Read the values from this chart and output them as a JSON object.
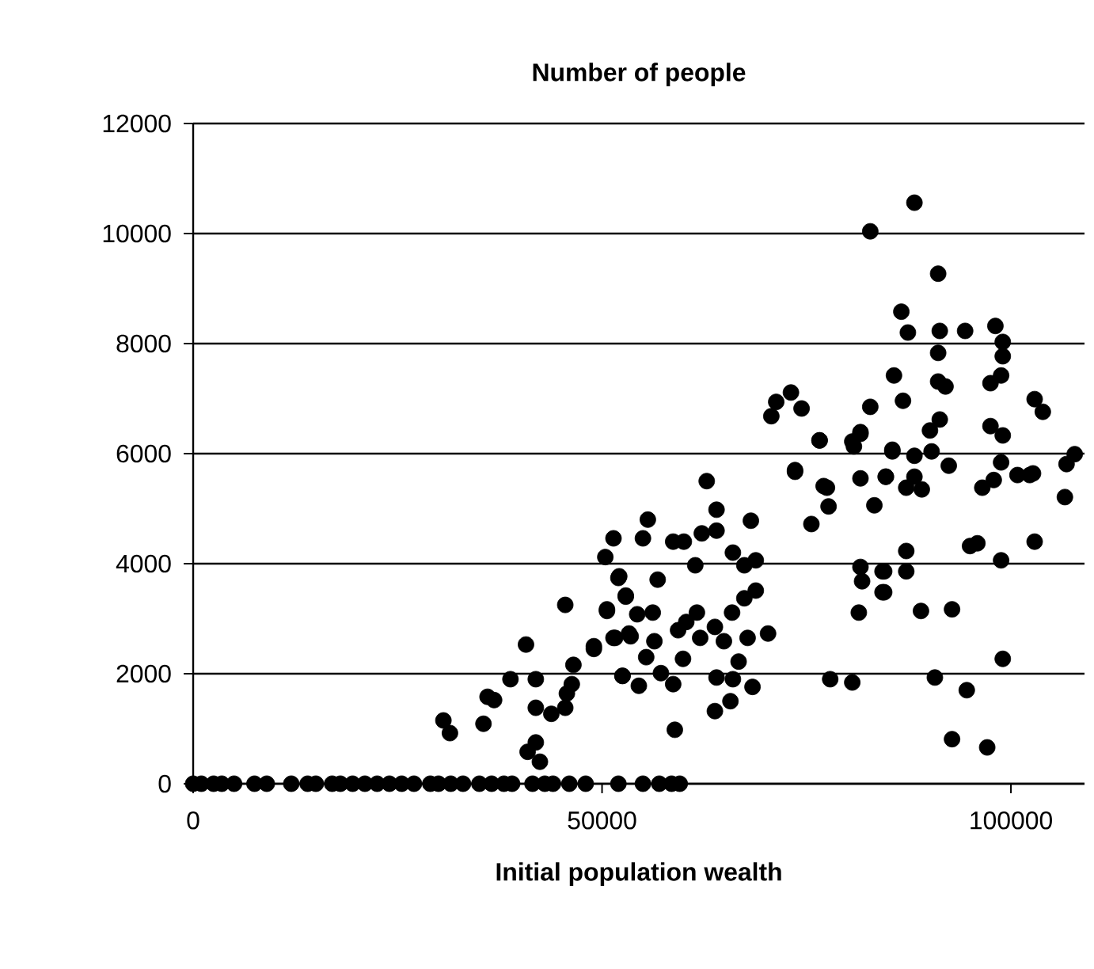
{
  "chart_data": {
    "type": "scatter",
    "title": "Number of people",
    "xlabel": "Initial population wealth",
    "xlim": [
      0,
      109000
    ],
    "xticks": [
      0,
      50000,
      100000
    ],
    "ylim": [
      0,
      12000
    ],
    "yticks": [
      0,
      2000,
      4000,
      6000,
      8000,
      10000,
      12000
    ],
    "grid": "y",
    "marker": "circle",
    "series": [
      {
        "color": "#000000",
        "x": [
          0,
          1000,
          2500,
          3500,
          5000,
          7500,
          9000,
          12000,
          14000,
          15000,
          17000,
          18000,
          19500,
          21000,
          22500,
          24000,
          25500,
          27000,
          29000,
          30000,
          31500,
          33000,
          35000,
          36500,
          38000,
          39000,
          41500,
          43000,
          44000,
          46000,
          48000,
          52000,
          55000,
          57000,
          58500,
          59500,
          30600,
          31400,
          35500,
          36000,
          36800,
          40700,
          38800,
          41900,
          41900,
          40900,
          41900,
          42400,
          43800,
          45500,
          45700,
          46300,
          46500,
          45500,
          49000,
          50600,
          52000,
          52900,
          52500,
          54500,
          51400,
          53300,
          62800,
          64000,
          55600,
          51400,
          50400,
          55000,
          58700,
          60000,
          62200,
          64000,
          68200,
          66000,
          68800,
          67400,
          61400,
          56800,
          52100,
          52900,
          50600,
          54300,
          56200,
          68800,
          67400,
          65900,
          61600,
          60300,
          63800,
          70300,
          49000,
          51600,
          53500,
          56400,
          59300,
          62000,
          64900,
          67800,
          55400,
          59900,
          66700,
          52500,
          57200,
          58700,
          64000,
          66000,
          68400,
          65700,
          63800,
          58900,
          77900,
          80600,
          73600,
          76600,
          77500,
          75600,
          77700,
          80600,
          81600,
          81600,
          84700,
          83300,
          81600,
          81800,
          84500,
          84500,
          81400,
          85500,
          88200,
          82800,
          91100,
          86600,
          87400,
          91300,
          94400,
          98100,
          99000,
          99000,
          91100,
          85700,
          91100,
          92000,
          98800,
          97500,
          86800,
          82800,
          71300,
          73100,
          74400,
          70700,
          102900,
          103900,
          76600,
          81600,
          80800,
          91300,
          90100,
          97500,
          99000,
          85500,
          88200,
          90300,
          92400,
          98800,
          73600,
          77100,
          84700,
          102300,
          106800,
          107800,
          106600,
          96500,
          97900,
          100800,
          102700,
          87200,
          89100,
          88200,
          95900,
          95000,
          102900,
          98800,
          87200,
          87200,
          84300,
          84300,
          89000,
          92800,
          99000,
          90700,
          94600,
          92800,
          97100
        ],
        "values": [
          0,
          0,
          0,
          0,
          0,
          0,
          0,
          0,
          0,
          0,
          0,
          0,
          0,
          0,
          0,
          0,
          0,
          0,
          0,
          0,
          0,
          0,
          0,
          0,
          0,
          0,
          0,
          0,
          0,
          0,
          0,
          0,
          0,
          0,
          0,
          0,
          1150,
          920,
          1090,
          1580,
          1520,
          2530,
          1900,
          1900,
          1380,
          580,
          750,
          400,
          1270,
          1380,
          1640,
          1810,
          2160,
          3250,
          2450,
          3170,
          3740,
          3420,
          1960,
          1780,
          2650,
          2730,
          5500,
          4980,
          4800,
          4460,
          4120,
          4460,
          4400,
          4400,
          4550,
          4600,
          4780,
          4200,
          4060,
          3970,
          3970,
          3710,
          3770,
          3400,
          3140,
          3080,
          3110,
          3510,
          3370,
          3110,
          3110,
          2940,
          2850,
          2730,
          2500,
          2650,
          2680,
          2590,
          2790,
          2650,
          2590,
          2650,
          2300,
          2270,
          2220,
          1960,
          2010,
          1810,
          1930,
          1900,
          1760,
          1500,
          1320,
          980,
          1900,
          1840,
          5670,
          6240,
          5380,
          4720,
          5040,
          6220,
          6390,
          5550,
          5580,
          5060,
          3940,
          3680,
          3860,
          3480,
          3110,
          6040,
          10560,
          10040,
          9270,
          8580,
          8200,
          8230,
          8230,
          8320,
          8030,
          7770,
          7830,
          7420,
          7310,
          7220,
          7420,
          7280,
          6960,
          6850,
          6940,
          7110,
          6820,
          6680,
          6990,
          6760,
          6240,
          6360,
          6130,
          6620,
          6420,
          6500,
          6330,
          6070,
          5960,
          6040,
          5780,
          5840,
          5700,
          5410,
          5580,
          5610,
          5810,
          5990,
          5210,
          5380,
          5520,
          5610,
          5640,
          5380,
          5350,
          5580,
          4370,
          4320,
          4400,
          4060,
          4230,
          3860,
          3860,
          3480,
          3140,
          3170,
          2270,
          1930,
          1700,
          810,
          660
        ]
      }
    ]
  }
}
